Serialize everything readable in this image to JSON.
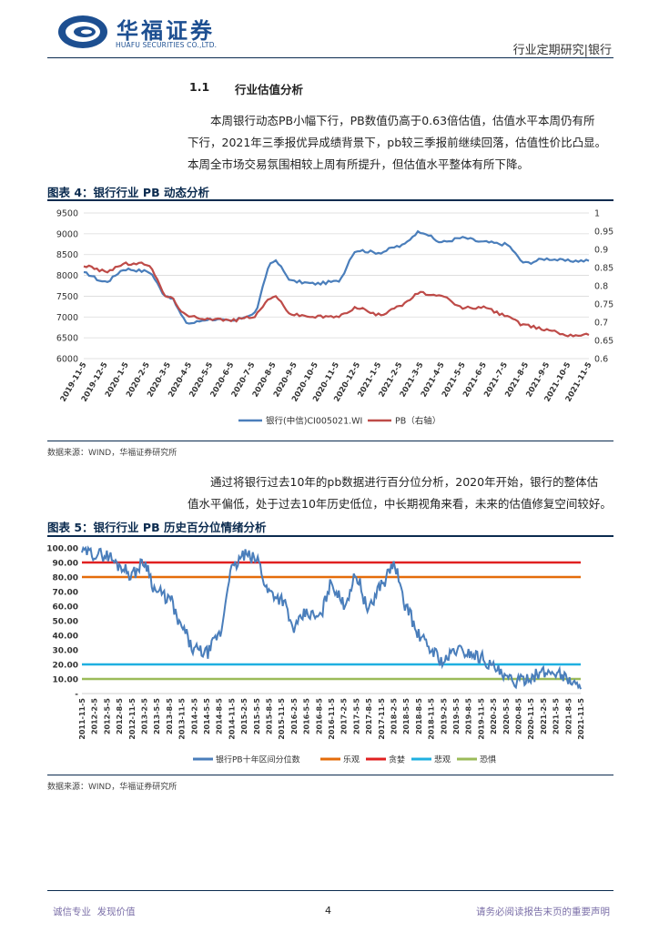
{
  "header": {
    "company_cn": "华福证券",
    "company_en": "HUAFU SECURITIES CO.,LTD.",
    "report_type": "行业定期研究|银行"
  },
  "section": {
    "number": "1.1",
    "title": "行业估值分析"
  },
  "paragraph1": [
    "本周银行动态PB小幅下行，PB数值仍高于0.63倍估值，估值水平本周仍有所",
    "下行，2021年三季报优异成绩背景下，pb较三季报前继续回落，估值性价比凸显。",
    "本周全市场交易氛围相较上周有所提升，但估值水平整体有所下降。"
  ],
  "figure4": {
    "title": "图表 4：银行行业 PB 动态分析",
    "source": "数据来源：WIND，华福证券研究所"
  },
  "paragraph2": [
    "通过将银行过去10年的pb数据进行百分位分析，2020年开始，银行的整体估",
    "值水平偏低，处于过去10年历史低位，中长期视角来看，未来的估值修复空间较好。"
  ],
  "figure5": {
    "title": "图表 5：银行行业 PB 历史百分位情绪分析",
    "source": "数据来源：WIND，华福证券研究所"
  },
  "footer": {
    "left": "诚信专业  发现价值",
    "page": "4",
    "right": "请务必阅读报告末页的重要声明"
  },
  "colors": {
    "blue_series": "#4a7ebb",
    "red_series": "#be4b48",
    "greed": "#e02020",
    "optimistic": "#e46c0a",
    "pessimistic": "#1fb0e0",
    "panic": "#9bbb59",
    "brand": "#0b2b4f"
  },
  "chart_data": [
    {
      "type": "line",
      "x": [
        "2019-11-5",
        "2019-12-5",
        "2020-1-5",
        "2020-2-5",
        "2020-3-5",
        "2020-4-5",
        "2020-5-5",
        "2020-6-5",
        "2020-7-5",
        "2020-8-5",
        "2020-9-5",
        "2020-10-5",
        "2020-11-5",
        "2020-12-5",
        "2021-1-5",
        "2021-2-5",
        "2021-3-5",
        "2021-4-5",
        "2021-5-5",
        "2021-6-5",
        "2021-7-5",
        "2021-8-5",
        "2021-9-5",
        "2021-10-5",
        "2021-11-5"
      ],
      "series": [
        {
          "name": "银行(中信)CI005021.WI",
          "axis": "left",
          "values": [
            8050,
            7850,
            8150,
            8100,
            7500,
            6850,
            6950,
            6900,
            7050,
            8350,
            7850,
            7800,
            7850,
            8600,
            8550,
            8700,
            9050,
            8800,
            8900,
            8800,
            8750,
            8300,
            8400,
            8350,
            8350
          ]
        },
        {
          "name": "PB（右轴）",
          "axis": "right",
          "values": [
            0.855,
            0.84,
            0.86,
            0.86,
            0.77,
            0.715,
            0.71,
            0.705,
            0.715,
            0.77,
            0.72,
            0.715,
            0.715,
            0.74,
            0.72,
            0.745,
            0.78,
            0.77,
            0.74,
            0.74,
            0.72,
            0.69,
            0.68,
            0.665,
            0.665
          ]
        }
      ],
      "y_left": {
        "ylim": [
          6000,
          9500
        ],
        "ticks": [
          6000,
          6500,
          7000,
          7500,
          8000,
          8500,
          9000,
          9500
        ]
      },
      "y_right": {
        "ylim": [
          0.6,
          1.0
        ],
        "ticks": [
          "0.6",
          "0.65",
          "0.7",
          "0.75",
          "0.8",
          "0.85",
          "0.9",
          "0.95",
          "1"
        ]
      },
      "legend_position": "bottom",
      "grid": true
    },
    {
      "type": "line",
      "x": [
        "2011-11-5",
        "2012-2-5",
        "2012-5-5",
        "2012-8-5",
        "2012-11-5",
        "2013-2-5",
        "2013-5-5",
        "2013-8-5",
        "2013-11-5",
        "2014-2-5",
        "2014-5-5",
        "2014-8-5",
        "2014-11-5",
        "2015-2-5",
        "2015-5-5",
        "2015-8-5",
        "2015-11-5",
        "2016-2-5",
        "2016-5-5",
        "2016-8-5",
        "2016-11-5",
        "2017-2-5",
        "2017-5-5",
        "2017-8-5",
        "2017-11-5",
        "2018-2-5",
        "2018-5-5",
        "2018-8-5",
        "2018-11-5",
        "2019-2-5",
        "2019-5-5",
        "2019-8-5",
        "2019-11-5",
        "2020-2-5",
        "2020-5-5",
        "2020-8-5",
        "2020-11-5",
        "2021-2-5",
        "2021-5-5",
        "2021-8-5",
        "2021-11-5"
      ],
      "series": [
        {
          "name": "银行PB十年区间分位数",
          "values": [
            98,
            96,
            95,
            88,
            82,
            90,
            70,
            65,
            45,
            30,
            28,
            40,
            85,
            95,
            92,
            70,
            65,
            45,
            55,
            52,
            75,
            62,
            80,
            58,
            75,
            88,
            60,
            40,
            30,
            22,
            30,
            28,
            25,
            18,
            10,
            8,
            12,
            14,
            15,
            10,
            3
          ]
        }
      ],
      "thresholds": [
        {
          "name": "乐观",
          "value": 80
        },
        {
          "name": "贪婪",
          "value": 90
        },
        {
          "name": "悲观",
          "value": 20
        },
        {
          "name": "恐惧",
          "value": 10
        }
      ],
      "ylim": [
        0,
        100
      ],
      "y_ticks": [
        "100.00",
        "90.00",
        "80.00",
        "70.00",
        "60.00",
        "50.00",
        "40.00",
        "30.00",
        "20.00",
        "10.00",
        "-"
      ],
      "legend_position": "bottom",
      "grid": false
    }
  ]
}
